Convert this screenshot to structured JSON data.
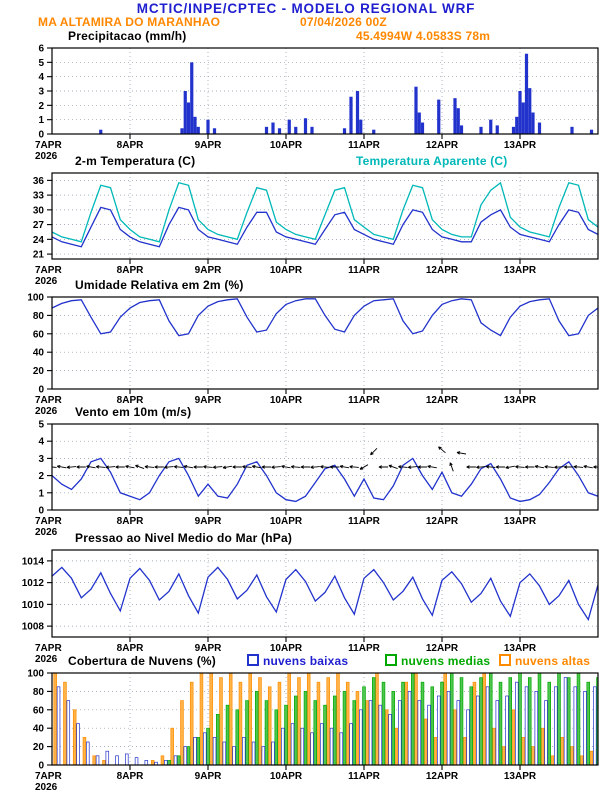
{
  "header": {
    "title": "MCTIC/INPE/CPTEC - MODELO REGIONAL WRF",
    "station": "MA ALTAMIRA DO MARANHAO",
    "run": "07/04/2026 00Z",
    "coords": "45.4994W 4.0583S 78m"
  },
  "colors": {
    "title_blue": "#1f1fd0",
    "orange": "#ff8c00",
    "line_blue": "#2233cc",
    "cyan": "#00b8b8",
    "green": "#00a800",
    "black": "#000000"
  },
  "x_axis": {
    "start_label": "7APR",
    "year_label": "2026",
    "day_labels": [
      "8APR",
      "9APR",
      "10APR",
      "11APR",
      "12APR",
      "13APR"
    ],
    "tick_hours": [
      24,
      48,
      72,
      96,
      120,
      144
    ],
    "hours_total": 168
  },
  "chart_data": [
    {
      "id": "precip",
      "type": "bar",
      "title": "Precipitacao (mm/h)",
      "ylabel": "mm/h",
      "yticks": [
        0,
        1,
        2,
        3,
        4,
        5,
        6
      ],
      "ylim": [
        0,
        6
      ],
      "color_key": "line_blue",
      "points": [
        [
          15,
          0.3
        ],
        [
          40,
          0.4
        ],
        [
          41,
          3.0
        ],
        [
          42,
          2.2
        ],
        [
          43,
          5.0
        ],
        [
          44,
          1.2
        ],
        [
          45,
          0.5
        ],
        [
          48,
          1.0
        ],
        [
          50,
          0.4
        ],
        [
          66,
          0.5
        ],
        [
          68,
          0.8
        ],
        [
          70,
          0.4
        ],
        [
          73,
          1.0
        ],
        [
          75,
          0.5
        ],
        [
          78,
          1.1
        ],
        [
          80,
          0.5
        ],
        [
          90,
          0.4
        ],
        [
          92,
          2.6
        ],
        [
          94,
          3.0
        ],
        [
          95,
          1.0
        ],
        [
          99,
          0.3
        ],
        [
          112,
          3.3
        ],
        [
          113,
          1.5
        ],
        [
          114,
          0.8
        ],
        [
          119,
          2.4
        ],
        [
          124,
          2.5
        ],
        [
          125,
          1.8
        ],
        [
          126,
          0.6
        ],
        [
          132,
          0.5
        ],
        [
          135,
          1.0
        ],
        [
          137,
          0.6
        ],
        [
          142,
          0.5
        ],
        [
          143,
          1.2
        ],
        [
          144,
          3.0
        ],
        [
          145,
          2.2
        ],
        [
          146,
          5.6
        ],
        [
          147,
          3.2
        ],
        [
          148,
          1.5
        ],
        [
          150,
          0.8
        ],
        [
          160,
          0.5
        ],
        [
          166,
          0.3
        ]
      ]
    },
    {
      "id": "temp",
      "type": "line",
      "title": "2-m Temperatura (C)",
      "legend_right": "Temperatura Aparente (C)",
      "yticks": [
        21,
        24,
        27,
        30,
        33,
        36
      ],
      "ylim": [
        20,
        37.5
      ],
      "step_hours": 3,
      "series": [
        {
          "name": "temperatura-2m",
          "color_key": "line_blue",
          "values": [
            24.5,
            23.5,
            23,
            22.5,
            26.5,
            30.5,
            30,
            26,
            24.5,
            23.5,
            23,
            22.5,
            27,
            30.5,
            30,
            26,
            24.5,
            24,
            23.5,
            23,
            26.5,
            29.5,
            29.5,
            25.5,
            24.5,
            24,
            23.5,
            23,
            26,
            29,
            29.5,
            26,
            25,
            24,
            23.5,
            23,
            27,
            30,
            29.5,
            26,
            24.5,
            24,
            23.5,
            23.5,
            27.5,
            29,
            30,
            26.5,
            25,
            24.5,
            24,
            23.5,
            27,
            30,
            29.5,
            26,
            25
          ]
        },
        {
          "name": "temperatura-aparente",
          "color_key": "cyan",
          "values": [
            25.5,
            24.5,
            24,
            23.5,
            29.5,
            35,
            34.5,
            28,
            26,
            24.5,
            24,
            23.5,
            30,
            35.5,
            35,
            28,
            26,
            25,
            24.5,
            24,
            29.5,
            34.5,
            34,
            27.5,
            26,
            25,
            24.5,
            24,
            29,
            34,
            34.5,
            28,
            26.5,
            25,
            24.5,
            24,
            30,
            35,
            34.5,
            28,
            26,
            25,
            24.5,
            24.5,
            31,
            34,
            35.5,
            28.5,
            26.5,
            25.5,
            25,
            24.5,
            30.5,
            35.5,
            35,
            28,
            26.5
          ]
        }
      ]
    },
    {
      "id": "rh",
      "type": "line",
      "title": "Umidade Relativa em 2m (%)",
      "yticks": [
        0,
        20,
        40,
        60,
        80,
        100
      ],
      "ylim": [
        0,
        100
      ],
      "step_hours": 3,
      "series": [
        {
          "name": "umidade-relativa",
          "color_key": "line_blue",
          "values": [
            88,
            93,
            96,
            97,
            78,
            60,
            62,
            78,
            88,
            94,
            96,
            97,
            74,
            58,
            60,
            80,
            90,
            95,
            97,
            98,
            78,
            62,
            64,
            82,
            92,
            96,
            98,
            98,
            80,
            65,
            62,
            80,
            90,
            96,
            97,
            98,
            74,
            60,
            63,
            80,
            92,
            96,
            98,
            97,
            72,
            64,
            58,
            78,
            90,
            95,
            97,
            98,
            74,
            58,
            60,
            80,
            88
          ]
        }
      ]
    },
    {
      "id": "wind",
      "type": "line",
      "title": "Vento em 10m (m/s)",
      "yticks": [
        0,
        1,
        2,
        3,
        4,
        5
      ],
      "ylim": [
        0,
        5
      ],
      "step_hours": 3,
      "series": [
        {
          "name": "vento-10m",
          "color_key": "line_blue",
          "values": [
            2,
            1.5,
            1.2,
            1.8,
            2.8,
            3,
            2.2,
            1,
            0.8,
            0.6,
            1,
            2,
            2.8,
            3,
            2,
            0.8,
            1.5,
            0.8,
            0.7,
            1.5,
            2.6,
            2.8,
            2,
            1,
            0.6,
            0.5,
            0.8,
            1.6,
            2.4,
            2.6,
            1.8,
            0.8,
            1.8,
            0.7,
            0.6,
            1.4,
            2.6,
            3,
            2,
            1.2,
            2.2,
            1,
            0.8,
            1.5,
            2.4,
            2.7,
            1.8,
            0.7,
            0.5,
            0.6,
            0.9,
            1.6,
            2.4,
            2.8,
            2,
            1,
            0.8
          ]
        }
      ],
      "arrows": {
        "step_hours": 3,
        "base_y": 2.5,
        "dirs_from_deg": [
          95,
          100,
          85,
          90,
          100,
          95,
          85,
          90,
          100,
          110,
          95,
          90,
          85,
          95,
          100,
          90,
          95,
          85,
          80,
          90,
          95,
          100,
          90,
          85,
          100,
          95,
          90,
          85,
          95,
          90,
          100,
          95,
          60,
          45,
          90,
          110,
          95,
          85,
          90,
          100,
          130,
          160,
          100,
          90,
          85,
          95,
          90,
          80,
          95,
          90,
          100,
          95,
          85,
          90,
          95,
          100,
          90
        ],
        "y_overrides": {
          "33": 3.4,
          "40": 3.5,
          "42": 3.3
        }
      }
    },
    {
      "id": "pres",
      "type": "line",
      "title": "Pressao ao Nivel Medio do Mar (hPa)",
      "yticks": [
        1008,
        1010,
        1012,
        1014
      ],
      "ylim": [
        1007,
        1015
      ],
      "step_hours": 3,
      "series": [
        {
          "name": "pressao-nmm",
          "color_key": "line_blue",
          "values": [
            1012.6,
            1013.4,
            1012.4,
            1010.6,
            1011.4,
            1012.9,
            1011.0,
            1009.4,
            1012.4,
            1013.3,
            1012.2,
            1010.4,
            1011.2,
            1012.8,
            1010.8,
            1009.2,
            1012.5,
            1013.4,
            1012.3,
            1010.5,
            1011.3,
            1012.7,
            1010.7,
            1009.3,
            1012.3,
            1013.2,
            1012.1,
            1010.3,
            1011.1,
            1012.6,
            1010.6,
            1009.1,
            1012.4,
            1013.2,
            1012.0,
            1010.4,
            1011.2,
            1012.5,
            1010.5,
            1009.0,
            1012.2,
            1013.0,
            1011.9,
            1010.2,
            1011.0,
            1012.4,
            1010.3,
            1008.9,
            1012.0,
            1012.8,
            1011.7,
            1010.0,
            1010.8,
            1012.2,
            1010.0,
            1008.6,
            1011.8
          ]
        }
      ]
    },
    {
      "id": "cloud",
      "type": "cloudbar",
      "title": "Cobertura de Nuvens (%)",
      "legend": [
        {
          "label": "nuvens baixas",
          "color_key": "line_blue"
        },
        {
          "label": "nuvens medias",
          "color_key": "green"
        },
        {
          "label": "nuvens altas",
          "color_key": "orange"
        }
      ],
      "yticks": [
        0,
        20,
        40,
        60,
        80,
        100
      ],
      "ylim": [
        0,
        100
      ],
      "step_hours": 3,
      "series": [
        {
          "name": "nuvens-baixas",
          "color_key": "line_blue",
          "fill": "#ffffff",
          "values": [
            95,
            85,
            70,
            45,
            25,
            10,
            15,
            10,
            12,
            8,
            5,
            3,
            5,
            10,
            20,
            30,
            35,
            30,
            25,
            20,
            30,
            25,
            20,
            25,
            40,
            45,
            40,
            35,
            45,
            40,
            35,
            45,
            60,
            70,
            65,
            55,
            70,
            80,
            70,
            65,
            75,
            80,
            70,
            60,
            75,
            85,
            70,
            75,
            90,
            85,
            80,
            70,
            85,
            95,
            85,
            80,
            85
          ]
        },
        {
          "name": "nuvens-medias",
          "color_key": "green",
          "fill": "#4fc64f",
          "values": [
            0,
            0,
            0,
            0,
            0,
            0,
            0,
            0,
            0,
            0,
            0,
            0,
            5,
            10,
            20,
            30,
            40,
            55,
            65,
            60,
            70,
            80,
            70,
            60,
            65,
            75,
            80,
            70,
            65,
            75,
            80,
            70,
            85,
            95,
            90,
            80,
            90,
            100,
            90,
            85,
            90,
            100,
            95,
            85,
            95,
            100,
            90,
            95,
            100,
            95,
            100,
            90,
            100,
            95,
            100,
            90,
            95
          ]
        },
        {
          "name": "nuvens-altas",
          "color_key": "orange",
          "fill": "#ffb347",
          "values": [
            100,
            90,
            60,
            30,
            10,
            5,
            0,
            0,
            0,
            0,
            5,
            10,
            40,
            70,
            90,
            100,
            100,
            95,
            100,
            90,
            100,
            95,
            85,
            90,
            100,
            95,
            100,
            90,
            95,
            100,
            90,
            80,
            70,
            100,
            60,
            40,
            90,
            100,
            50,
            30,
            100,
            60,
            30,
            90,
            100,
            40,
            20,
            60,
            30,
            20,
            40,
            10,
            30,
            20,
            10,
            15,
            10
          ]
        }
      ]
    }
  ]
}
